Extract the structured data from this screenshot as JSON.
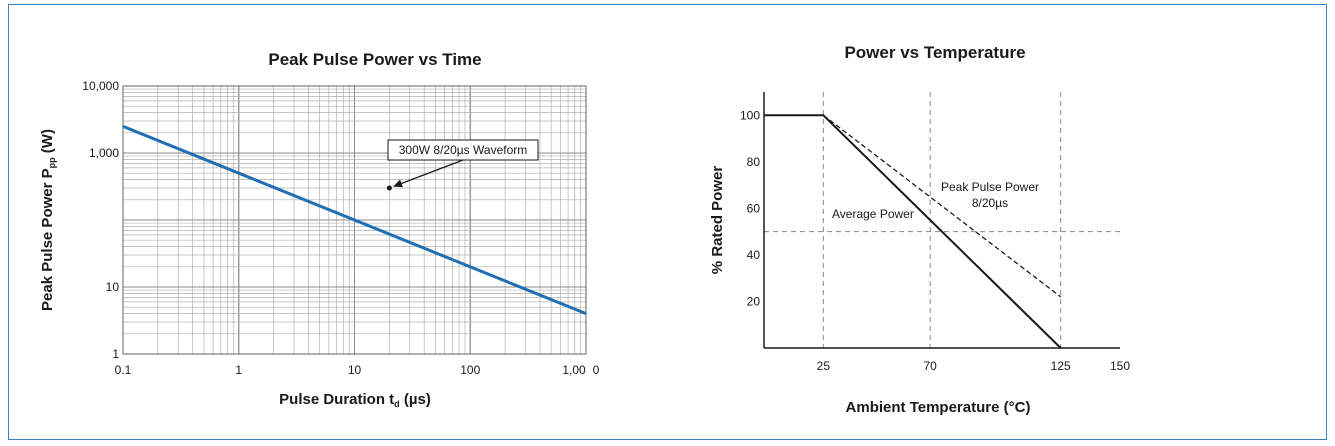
{
  "chart_data": [
    {
      "type": "line",
      "title": "Peak Pulse Power vs Time",
      "xlabel_main": "Pulse Duration t",
      "xlabel_sub": "d",
      "xlabel_unit": " (µs)",
      "ylabel_main": "Peak Pulse Power P",
      "ylabel_sub": "pp",
      "ylabel_unit": " (W)",
      "x_scale": "log",
      "y_scale": "log",
      "xlim": [
        0.1,
        1000
      ],
      "ylim": [
        1,
        10000
      ],
      "x_ticks": [
        {
          "value": 0.1,
          "label": "0.1"
        },
        {
          "value": 1,
          "label": "1"
        },
        {
          "value": 10,
          "label": "10"
        },
        {
          "value": 100,
          "label": "100"
        }
      ],
      "x_tick_end_label": "1,00",
      "x_tick_end_suffix": "0",
      "y_ticks": [
        {
          "value": 10000,
          "label": "10,000"
        },
        {
          "value": 1000,
          "label": "1,000"
        },
        {
          "value": 10,
          "label": "10"
        },
        {
          "value": 1,
          "label": "1"
        }
      ],
      "grid": true,
      "series": [
        {
          "x": [
            0.1,
            1000
          ],
          "y": [
            2500,
            4
          ],
          "color": "#1f6fb2"
        }
      ],
      "annotations": [
        {
          "text": "300W 8/20µs Waveform",
          "x": 20,
          "y": 300
        }
      ]
    },
    {
      "type": "line",
      "title": "Power vs Temperature",
      "xlabel": "Ambient Temperature (°C)",
      "ylabel": "% Rated Power",
      "xlim": [
        0,
        150
      ],
      "ylim": [
        0,
        110
      ],
      "x_ticks": [
        25,
        70,
        125,
        150
      ],
      "y_ticks": [
        20,
        40,
        60,
        80,
        100
      ],
      "reference_lines": {
        "x": [
          25,
          70,
          125
        ],
        "y": [
          50
        ]
      },
      "series": [
        {
          "name": "Average Power",
          "x": [
            0,
            25,
            125
          ],
          "y": [
            100,
            100,
            0
          ],
          "style": "solid"
        },
        {
          "name": "Peak Pulse Power 8/20µs",
          "x": [
            25,
            125
          ],
          "y": [
            100,
            22
          ],
          "style": "dashed"
        }
      ],
      "labels": [
        {
          "text": "Average Power"
        },
        {
          "text": "Peak Pulse Power"
        },
        {
          "text": "8/20µs"
        }
      ]
    }
  ]
}
